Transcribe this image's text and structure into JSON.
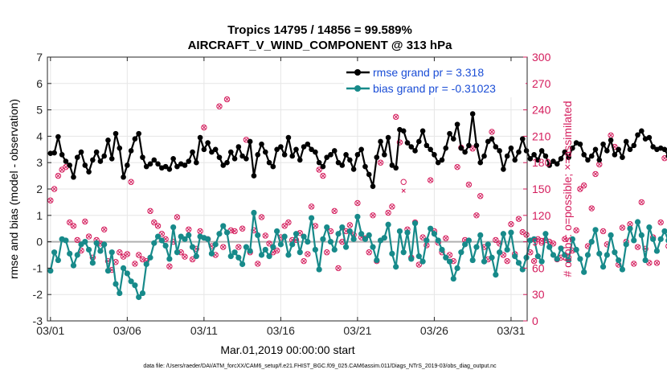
{
  "chart_data": {
    "type": "line",
    "title_line1": "Tropics 14795 / 14856 = 99.589%",
    "title_line2": "AIRCRAFT_V_WIND_COMPONENT @ 313 hPa",
    "xlabel": "Mar.01,2019 00:00:00 start",
    "ylabel_left": "rmse and bias (model - observation)",
    "ylabel_right": "# of obs: o=possible; ×=assimilated",
    "footer": "data file: /Users/raeder/DAI/ATM_forcXX/CAM6_setup/f.e21.FHIST_BGC.f09_025.CAM6assim.011/Diags_NTrS_2019-03/obs_diag_output.nc",
    "xlim": [
      0.8,
      32.05
    ],
    "ylim": [
      -3,
      7
    ],
    "y2lim": [
      0,
      300
    ],
    "xticks": [
      1,
      6,
      11,
      16,
      21,
      26,
      31
    ],
    "xtick_labels": [
      "03/01",
      "03/06",
      "03/11",
      "03/16",
      "03/21",
      "03/26",
      "03/31"
    ],
    "yticks": [
      -3,
      -2,
      -1,
      0,
      1,
      2,
      3,
      4,
      5,
      6,
      7
    ],
    "ytick_labels": [
      "-3",
      "-2",
      "-1",
      "0",
      "1",
      "2",
      "3",
      "4",
      "5",
      "6",
      "7"
    ],
    "y2ticks": [
      0,
      30,
      60,
      90,
      120,
      150,
      180,
      210,
      240,
      270,
      300
    ],
    "y2tick_labels": [
      "0",
      "30",
      "60",
      "90",
      "120",
      "150",
      "180",
      "210",
      "240",
      "270",
      "300"
    ],
    "series": [
      {
        "name": "rmse",
        "legend": "rmse grand pr = 3.318",
        "color": "#000000",
        "values": [
          3.35,
          3.37,
          3.98,
          3.3,
          3.05,
          2.9,
          2.45,
          3.2,
          3.4,
          2.9,
          2.65,
          3.1,
          3.4,
          3.05,
          3.25,
          3.85,
          3.15,
          4.1,
          3.55,
          2.45,
          2.9,
          3.45,
          3.9,
          4.1,
          3.2,
          2.85,
          2.95,
          3.1,
          2.95,
          2.8,
          2.85,
          2.75,
          3.15,
          2.85,
          2.95,
          2.9,
          3.05,
          3.4,
          3.0,
          3.95,
          3.5,
          3.75,
          3.4,
          3.5,
          3.2,
          2.9,
          3.0,
          3.4,
          3.15,
          3.6,
          3.25,
          3.15,
          3.8,
          2.5,
          3.3,
          3.7,
          3.4,
          3.0,
          2.85,
          3.5,
          3.6,
          3.3,
          3.95,
          3.25,
          3.5,
          3.1,
          3.6,
          3.7,
          3.5,
          3.4,
          3.0,
          2.85,
          3.2,
          3.3,
          3.45,
          3.0,
          2.9,
          3.3,
          3.1,
          2.75,
          3.3,
          3.5,
          2.85,
          2.55,
          2.1,
          3.2,
          3.8,
          3.3,
          3.95,
          2.9,
          2.8,
          4.25,
          4.2,
          3.75,
          3.6,
          3.45,
          3.8,
          4.2,
          3.65,
          3.5,
          3.3,
          3.0,
          3.1,
          3.55,
          4.1,
          3.9,
          4.45,
          3.55,
          3.4,
          3.65,
          4.85,
          3.65,
          3.0,
          3.25,
          3.8,
          3.9,
          3.6,
          3.45,
          2.75,
          3.25,
          3.55,
          3.1,
          3.4,
          3.9,
          3.45,
          3.15,
          3.3,
          3.1,
          3.45,
          3.25,
          2.9,
          3.05,
          2.95,
          3.15,
          3.4,
          3.2,
          3.55,
          3.75,
          3.7,
          3.3,
          3.1,
          3.25,
          3.5,
          3.1,
          3.7,
          3.45,
          3.85,
          3.3,
          3.5,
          3.2,
          3.8,
          3.5,
          3.65,
          4.05,
          4.2,
          3.9,
          3.95,
          3.6,
          3.5,
          3.55,
          3.5,
          3.25,
          2.9,
          3.3,
          3.45,
          3.1,
          3.3,
          3.05,
          2.95,
          2.85,
          3.05,
          2.75,
          3.45,
          3.1,
          2.9,
          2.6,
          2.75,
          2.45,
          2.65,
          2.95,
          2.9,
          3.1,
          3.25,
          2.85,
          3.05,
          2.95,
          3.55,
          3.8,
          3.2,
          2.95,
          3.1,
          3.0,
          2.7,
          2.5,
          3.05,
          3.4,
          3.55,
          3.75,
          3.2,
          3.6,
          2.95,
          3.0,
          3.4,
          3.9,
          3.25,
          3.15,
          2.85
        ]
      },
      {
        "name": "bias",
        "legend": "bias grand pr = -0.31023",
        "color": "#178a8a",
        "values": [
          -1.1,
          -0.4,
          -0.7,
          0.1,
          0.05,
          -0.45,
          -0.9,
          -0.5,
          -0.1,
          0.0,
          -0.3,
          -0.8,
          -0.05,
          -0.35,
          -0.1,
          -1.1,
          -0.4,
          -1.6,
          -1.95,
          -1.0,
          -1.2,
          -1.5,
          -1.65,
          -2.1,
          -1.95,
          -0.85,
          -0.6,
          -0.05,
          0.2,
          0.05,
          -0.15,
          -0.65,
          0.55,
          -0.4,
          0.2,
          0.1,
          0.25,
          -0.2,
          -0.55,
          0.2,
          0.15,
          0.1,
          -0.45,
          -0.1,
          0.3,
          0.6,
          0.35,
          -0.55,
          -0.4,
          -0.6,
          -0.85,
          -0.2,
          -0.35,
          1.1,
          0.25,
          -0.5,
          -0.3,
          -0.55,
          -0.2,
          0.4,
          -0.1,
          0.2,
          -0.5,
          -0.1,
          0.3,
          -0.4,
          0.2,
          0.0,
          0.9,
          -0.3,
          -1.05,
          0.1,
          0.55,
          0.0,
          -0.3,
          0.3,
          0.55,
          -0.2,
          0.4,
          0.1,
          0.95,
          0.3,
          0.1,
          0.25,
          -0.2,
          -0.7,
          0.05,
          0.15,
          0.65,
          -0.45,
          -0.95,
          0.4,
          -0.4,
          0.35,
          -0.65,
          0.7,
          -0.55,
          -0.75,
          0.05,
          0.5,
          0.3,
          0.05,
          -0.3,
          -0.6,
          -0.75,
          -1.4,
          -1.0,
          -0.4,
          -0.1,
          0.05,
          -0.7,
          -0.2,
          0.25,
          -0.75,
          -0.1,
          -0.6,
          -1.25,
          -0.4,
          0.3,
          -0.3,
          0.35,
          -0.55,
          -0.8,
          -1.05,
          -0.6,
          0.05,
          0.1,
          -0.55,
          -0.75,
          0.3,
          -0.2,
          -0.5,
          -0.65,
          -0.25,
          -0.5,
          -0.7,
          0.1,
          -0.3,
          -0.65,
          -1.15,
          -0.5,
          0.0,
          0.45,
          -0.45,
          -0.95,
          -0.5,
          0.25,
          -0.4,
          -0.7,
          -1.05,
          -0.1,
          0.5,
          0.05,
          0.75,
          0.25,
          -0.7,
          0.55,
          0.1,
          -0.35,
          0.1,
          0.4,
          0.05,
          -0.1,
          -0.3,
          0.15,
          0.2,
          -0.5,
          0.1,
          -0.4,
          0.2,
          0.05,
          -0.25,
          0.25,
          -0.05,
          -0.3,
          -0.7,
          -0.9,
          -0.65,
          -0.25,
          -0.6,
          -1.0,
          -0.3,
          -0.4,
          0.3,
          0.1,
          0.45,
          -0.15,
          0.2,
          0.55,
          0.0,
          0.5,
          0.3,
          -0.3,
          -0.5,
          -0.1,
          -0.75,
          0.35,
          0.65,
          -0.35,
          -0.85,
          -0.25,
          -0.7
        ]
      },
      {
        "name": "obs_possible",
        "axis": "right",
        "color": "#d41c5c",
        "marker": "circle",
        "values": [
          137,
          150,
          165,
          172,
          175,
          112,
          108,
          92,
          80,
          113,
          96,
          72,
          92,
          88,
          104,
          68,
          58,
          67,
          78,
          73,
          76,
          158,
          65,
          75,
          70,
          68,
          125,
          112,
          108,
          99,
          93,
          62,
          90,
          118,
          78,
          73,
          104,
          70,
          82,
          102,
          220,
          93,
          85,
          75,
          244,
          84,
          252,
          103,
          102,
          84,
          105,
          206,
          78,
          103,
          65,
          118,
          97,
          88,
          78,
          80,
          95,
          108,
          112,
          92,
          92,
          100,
          68,
          76,
          130,
          108,
          172,
          165,
          78,
          102,
          125,
          60,
          90,
          102,
          109,
          98,
          134,
          95,
          94,
          78,
          120,
          68,
          180,
          274,
          123,
          130,
          232,
          203,
          158,
          104,
          72,
          112,
          64,
          95,
          86,
          160,
          102,
          89,
          78,
          94,
          75,
          68,
          175,
          197,
          92,
          155,
          196,
          120,
          142,
          84,
          70,
          215,
          92,
          88,
          75,
          68,
          110,
          76,
          116,
          101,
          98,
          78,
          68,
          93,
          91,
          92,
          90,
          88,
          70,
          72,
          93,
          72,
          80,
          103,
          150,
          154,
          85,
          128,
          167,
          178,
          102,
          87,
          211,
          198,
          64,
          106,
          90,
          110,
          65,
          84,
          135,
          82,
          66,
          95,
          66,
          112,
          185,
          85,
          70,
          92,
          72,
          79,
          78,
          78,
          62,
          96,
          75,
          165,
          105,
          72,
          190,
          80,
          72,
          165,
          178,
          88,
          130,
          102,
          178,
          95,
          78,
          65,
          212,
          128,
          75,
          95,
          72,
          128,
          210,
          104,
          92,
          78,
          0
        ]
      },
      {
        "name": "obs_assimilated",
        "axis": "right",
        "color": "#d41c5c",
        "marker": "x",
        "values": [
          137,
          150,
          165,
          172,
          175,
          112,
          108,
          92,
          80,
          113,
          96,
          72,
          92,
          88,
          104,
          68,
          58,
          67,
          78,
          73,
          76,
          158,
          65,
          75,
          70,
          68,
          125,
          112,
          108,
          99,
          93,
          62,
          90,
          118,
          78,
          73,
          104,
          70,
          82,
          102,
          220,
          93,
          85,
          75,
          244,
          84,
          252,
          103,
          102,
          84,
          105,
          206,
          78,
          103,
          65,
          118,
          97,
          88,
          78,
          80,
          95,
          108,
          112,
          92,
          92,
          100,
          68,
          76,
          130,
          108,
          172,
          165,
          78,
          102,
          125,
          60,
          90,
          102,
          109,
          98,
          134,
          95,
          94,
          78,
          120,
          68,
          180,
          274,
          123,
          130,
          232,
          203,
          148,
          104,
          72,
          112,
          64,
          95,
          86,
          160,
          102,
          89,
          78,
          94,
          75,
          68,
          175,
          197,
          92,
          155,
          196,
          120,
          142,
          84,
          70,
          215,
          92,
          88,
          75,
          68,
          110,
          76,
          116,
          101,
          98,
          78,
          68,
          93,
          91,
          92,
          90,
          88,
          70,
          72,
          93,
          72,
          80,
          103,
          150,
          154,
          85,
          128,
          167,
          178,
          102,
          87,
          211,
          198,
          64,
          106,
          90,
          110,
          65,
          84,
          135,
          82,
          66,
          95,
          66,
          112,
          185,
          85,
          70,
          92,
          72,
          79,
          78,
          78,
          62,
          96,
          75,
          165,
          105,
          72,
          190,
          80,
          72,
          165,
          178,
          88,
          130,
          102,
          178,
          95,
          78,
          65,
          212,
          128,
          75,
          95,
          72,
          128,
          210,
          104,
          92,
          78,
          0
        ]
      }
    ]
  }
}
